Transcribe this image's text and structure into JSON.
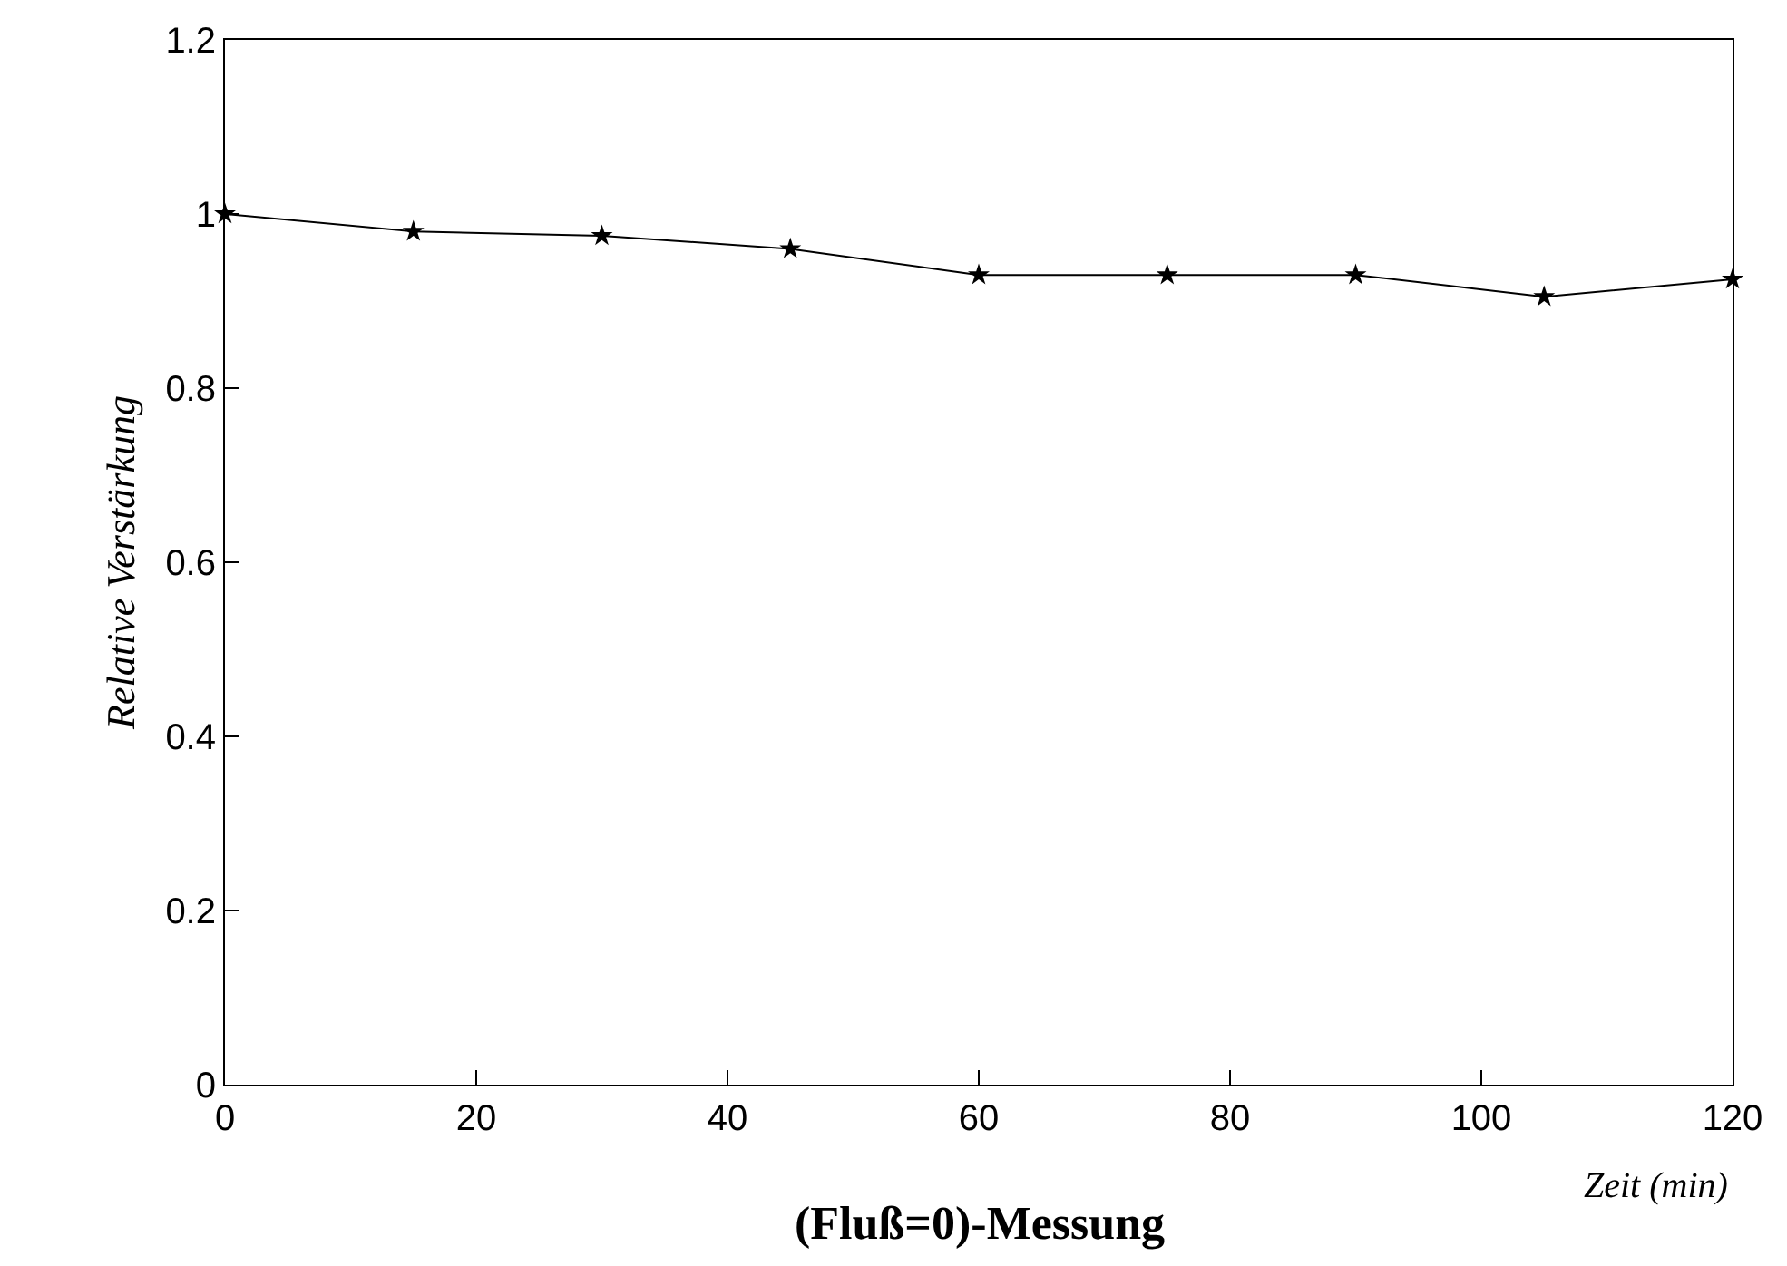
{
  "chart_data": {
    "type": "line",
    "title": "(Fluß=0)-Messung",
    "xlabel": "Zeit (min)",
    "ylabel": "Relative Verstärkung",
    "x": [
      0,
      15,
      30,
      45,
      60,
      75,
      90,
      105,
      120
    ],
    "series": [
      {
        "color": "#000000",
        "values": [
          1.0,
          0.98,
          0.975,
          0.96,
          0.93,
          0.93,
          0.93,
          0.905,
          0.925
        ]
      }
    ],
    "xlim": [
      0,
      120
    ],
    "xticks": [
      0,
      20,
      40,
      60,
      80,
      100,
      120
    ],
    "ylim": [
      0,
      1.2
    ],
    "yticks": [
      0,
      0.2,
      0.4,
      0.6,
      0.8,
      1,
      1.2
    ],
    "marker": "star",
    "line_style": "solid",
    "grid": false,
    "legend": false
  }
}
